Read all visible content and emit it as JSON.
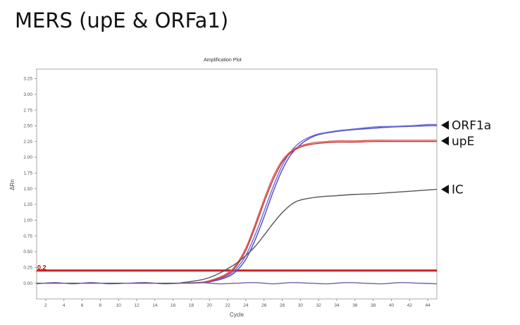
{
  "page": {
    "title": "MERS (upE & ORFa1)"
  },
  "chart_data": {
    "type": "line",
    "title": "Amplification Plot",
    "xlabel": "Cycle",
    "ylabel": "ΔRn",
    "xlim": [
      1,
      45
    ],
    "ylim": [
      -0.25,
      3.4
    ],
    "x_ticks": [
      2,
      4,
      6,
      8,
      10,
      12,
      14,
      16,
      18,
      20,
      22,
      24,
      26,
      28,
      30,
      32,
      34,
      36,
      38,
      40,
      42,
      44
    ],
    "y_ticks": [
      0.0,
      0.25,
      0.5,
      0.75,
      1.0,
      1.25,
      1.5,
      1.75,
      2.0,
      2.25,
      2.5,
      2.75,
      3.0,
      3.25
    ],
    "y_tick_labels": [
      "0.00",
      "0.25",
      "0.50",
      "0.75",
      "1.00",
      "1.25",
      "1.50",
      "1.75",
      "2.00",
      "2.25",
      "2.50",
      "2.75",
      "3.00",
      "3.25"
    ],
    "grid": false,
    "threshold": {
      "value": 0.2,
      "label": "0.2",
      "color": "#cc2020"
    },
    "series": [
      {
        "name": "ORF1a",
        "color": "#4b4bc8",
        "x": [
          1,
          16,
          18,
          20,
          22,
          23,
          24,
          25,
          26,
          27,
          28,
          29,
          30,
          31,
          32,
          34,
          36,
          38,
          40,
          42,
          44,
          45
        ],
        "y": [
          0.0,
          0.0,
          0.0,
          0.02,
          0.1,
          0.2,
          0.38,
          0.68,
          1.05,
          1.45,
          1.8,
          2.05,
          2.2,
          2.3,
          2.36,
          2.41,
          2.44,
          2.46,
          2.48,
          2.49,
          2.5,
          2.5
        ]
      },
      {
        "name": "ORF1a",
        "color": "#6a6ad8",
        "x": [
          1,
          16,
          18,
          20,
          22,
          23,
          24,
          25,
          26,
          27,
          28,
          29,
          30,
          31,
          32,
          34,
          36,
          38,
          40,
          42,
          44,
          45
        ],
        "y": [
          0.0,
          0.0,
          0.0,
          0.03,
          0.12,
          0.24,
          0.44,
          0.76,
          1.14,
          1.53,
          1.87,
          2.1,
          2.24,
          2.32,
          2.37,
          2.42,
          2.45,
          2.48,
          2.49,
          2.5,
          2.52,
          2.52
        ]
      },
      {
        "name": "upE",
        "color": "#cc3333",
        "x": [
          1,
          16,
          18,
          20,
          22,
          23,
          24,
          25,
          26,
          27,
          28,
          29,
          30,
          31,
          32,
          34,
          36,
          38,
          40,
          42,
          44,
          45
        ],
        "y": [
          0.0,
          0.0,
          0.0,
          0.03,
          0.14,
          0.28,
          0.52,
          0.88,
          1.28,
          1.64,
          1.92,
          2.08,
          2.16,
          2.2,
          2.22,
          2.24,
          2.24,
          2.25,
          2.25,
          2.25,
          2.25,
          2.25
        ]
      },
      {
        "name": "upE",
        "color": "#d85a5a",
        "x": [
          1,
          16,
          18,
          20,
          22,
          23,
          24,
          25,
          26,
          27,
          28,
          29,
          30,
          31,
          32,
          34,
          36,
          38,
          40,
          42,
          44,
          45
        ],
        "y": [
          0.0,
          0.0,
          0.0,
          0.04,
          0.16,
          0.31,
          0.56,
          0.93,
          1.33,
          1.69,
          1.95,
          2.1,
          2.18,
          2.22,
          2.24,
          2.26,
          2.26,
          2.27,
          2.27,
          2.27,
          2.27,
          2.27
        ]
      },
      {
        "name": "IC",
        "color": "#555555",
        "x": [
          1,
          15,
          17,
          19,
          20,
          21,
          22,
          23,
          24,
          25,
          26,
          27,
          28,
          29,
          30,
          32,
          34,
          36,
          38,
          40,
          42,
          44,
          45
        ],
        "y": [
          0.0,
          0.0,
          0.01,
          0.05,
          0.09,
          0.15,
          0.23,
          0.32,
          0.44,
          0.58,
          0.76,
          0.95,
          1.12,
          1.25,
          1.32,
          1.37,
          1.39,
          1.41,
          1.42,
          1.44,
          1.46,
          1.48,
          1.49
        ]
      },
      {
        "name": "baseline",
        "color": "#7a5aa8",
        "x": [
          1,
          3,
          5,
          7,
          9,
          11,
          13,
          15,
          17,
          19,
          21,
          23,
          25,
          27,
          29,
          31,
          33,
          35,
          37,
          39,
          41,
          43,
          45
        ],
        "y": [
          -0.01,
          0.01,
          -0.01,
          0.01,
          -0.01,
          0.0,
          0.01,
          -0.01,
          0.0,
          0.01,
          -0.01,
          0.0,
          0.01,
          -0.01,
          0.01,
          0.0,
          -0.01,
          0.01,
          0.0,
          -0.01,
          0.01,
          0.0,
          -0.01
        ]
      }
    ],
    "annotations": [
      {
        "label": "ORF1a",
        "y": 2.51
      },
      {
        "label": "upE",
        "y": 2.26
      },
      {
        "label": "IC",
        "y": 1.49
      }
    ]
  }
}
